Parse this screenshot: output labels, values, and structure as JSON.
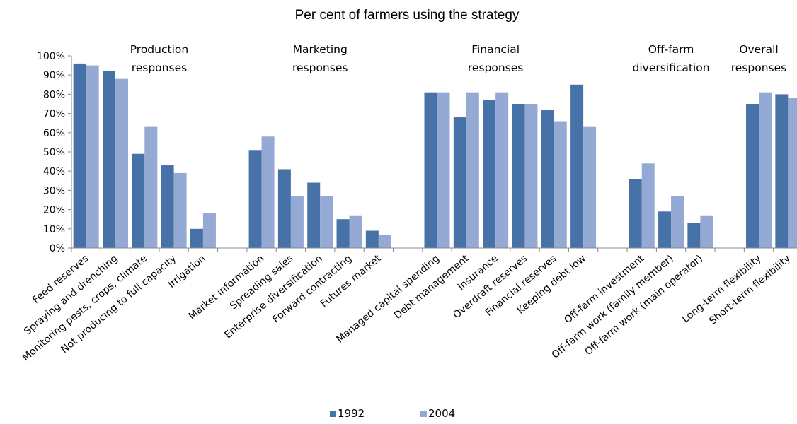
{
  "chart_data": {
    "type": "bar",
    "title": "Per cent of farmers using the strategy",
    "xlabel": "",
    "ylabel": "",
    "ylim": [
      0,
      100
    ],
    "yticks": [
      "0%",
      "10%",
      "20%",
      "30%",
      "40%",
      "50%",
      "60%",
      "70%",
      "80%",
      "90%",
      "100%"
    ],
    "grid": false,
    "legend_position": "bottom",
    "colors": {
      "1992": "#4672A8",
      "2004": "#94A9D3"
    },
    "series": [
      {
        "name": "1992",
        "values": [
          96,
          92,
          49,
          43,
          10,
          null,
          51,
          41,
          34,
          15,
          9,
          null,
          81,
          68,
          77,
          75,
          72,
          85,
          null,
          36,
          19,
          13,
          null,
          75,
          80
        ]
      },
      {
        "name": "2004",
        "values": [
          95,
          88,
          63,
          39,
          18,
          null,
          58,
          27,
          27,
          17,
          7,
          null,
          81,
          81,
          81,
          75,
          66,
          63,
          null,
          44,
          27,
          17,
          null,
          81,
          78
        ]
      }
    ],
    "categories": [
      "Feed reserves",
      "Spraying and drenching",
      "Monitoring pests, crops, climate",
      "Not producing to full capacity",
      "Irrigation",
      "",
      "Market information",
      "Spreading sales",
      "Enterprise diversification",
      "Forward contracting",
      "Futures market",
      "",
      "Managed capital spending",
      "Debt management",
      "Insurance",
      "Overdraft reserves",
      "Financial reserves",
      "Keeping debt low",
      "",
      "Off-farm investment",
      "Off-farm work (family member)",
      "Off-farm work (main operator)",
      "",
      "Long-term flexibility",
      "Short-term flexibility"
    ],
    "groups": [
      {
        "lines": [
          "Production",
          "responses"
        ],
        "center_index": 2.5
      },
      {
        "lines": [
          "Marketing",
          "responses"
        ],
        "center_index": 8.0
      },
      {
        "lines": [
          "Financial",
          "responses"
        ],
        "center_index": 14.0
      },
      {
        "lines": [
          "Off-farm",
          "diversification"
        ],
        "center_index": 20.0
      },
      {
        "lines": [
          "Overall",
          "responses"
        ],
        "center_index": 23.0
      }
    ]
  }
}
